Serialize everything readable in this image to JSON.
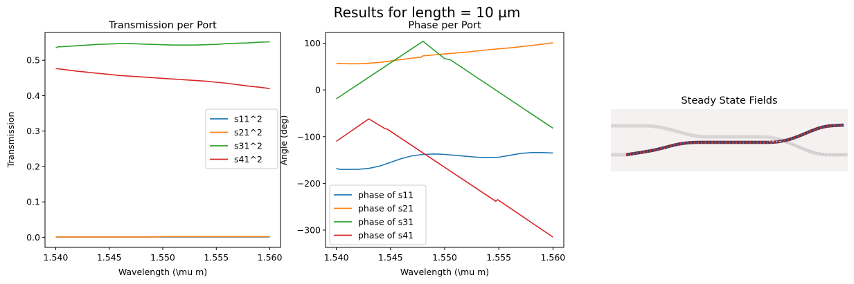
{
  "suptitle": "Results for length = 10 µm",
  "chart_data": [
    {
      "type": "line",
      "title": "Transmission per Port",
      "xlabel": "Wavelength (\\mu m)",
      "ylabel": "Transmission",
      "xlim": [
        1.539,
        1.561
      ],
      "ylim": [
        -0.0285,
        0.5785
      ],
      "xticks": [
        1.54,
        1.545,
        1.55,
        1.555,
        1.56
      ],
      "xtick_labels": [
        "1.540",
        "1.545",
        "1.550",
        "1.555",
        "1.560"
      ],
      "yticks": [
        0.0,
        0.1,
        0.2,
        0.3,
        0.4,
        0.5
      ],
      "ytick_labels": [
        "0.0",
        "0.1",
        "0.2",
        "0.3",
        "0.4",
        "0.5"
      ],
      "legend_position": "center-right",
      "x": [
        1.54,
        1.5402,
        1.541,
        1.542,
        1.543,
        1.544,
        1.545,
        1.546,
        1.547,
        1.548,
        1.549,
        1.55,
        1.551,
        1.552,
        1.553,
        1.554,
        1.555,
        1.556,
        1.557,
        1.558,
        1.559,
        1.56
      ],
      "series": [
        {
          "name": "s11^2",
          "color": "#1f77b4",
          "values": [
            0.001,
            0.001,
            0.001,
            0.001,
            0.001,
            0.001,
            0.001,
            0.001,
            0.001,
            0.001,
            0.001,
            0.001,
            0.001,
            0.001,
            0.001,
            0.001,
            0.001,
            0.001,
            0.001,
            0.001,
            0.001,
            0.001
          ]
        },
        {
          "name": "s21^2",
          "color": "#ff7f0e",
          "values": [
            0.001,
            0.001,
            0.001,
            0.001,
            0.001,
            0.001,
            0.001,
            0.001,
            0.001,
            0.001,
            0.001,
            0.002,
            0.002,
            0.002,
            0.002,
            0.002,
            0.002,
            0.002,
            0.002,
            0.002,
            0.002,
            0.002
          ]
        },
        {
          "name": "s31^2",
          "color": "#2ca02c",
          "values": [
            0.535,
            0.538,
            0.539,
            0.541,
            0.543,
            0.545,
            0.546,
            0.547,
            0.547,
            0.546,
            0.545,
            0.544,
            0.543,
            0.543,
            0.543,
            0.544,
            0.545,
            0.547,
            0.548,
            0.549,
            0.551,
            0.552
          ]
        },
        {
          "name": "s41^2",
          "color": "#d62728",
          "values": [
            0.476,
            0.476,
            0.473,
            0.469,
            0.466,
            0.463,
            0.46,
            0.457,
            0.455,
            0.453,
            0.451,
            0.449,
            0.447,
            0.445,
            0.443,
            0.441,
            0.438,
            0.435,
            0.431,
            0.427,
            0.424,
            0.42
          ]
        }
      ]
    },
    {
      "type": "line",
      "title": "Phase per Port",
      "xlabel": "Wavelength (\\mu m)",
      "ylabel": "Angle (deg)",
      "xlim": [
        1.539,
        1.561
      ],
      "ylim": [
        -337,
        123
      ],
      "xticks": [
        1.54,
        1.545,
        1.55,
        1.555,
        1.56
      ],
      "xtick_labels": [
        "1.540",
        "1.545",
        "1.550",
        "1.555",
        "1.560"
      ],
      "yticks": [
        100,
        0,
        -100,
        -200,
        -300
      ],
      "ytick_labels": [
        "100",
        "0",
        "−100",
        "−200",
        "−300"
      ],
      "legend_position": "lower-left",
      "series": [
        {
          "name": "phase of s11",
          "color": "#1f77b4",
          "x": [
            1.54,
            1.5403,
            1.541,
            1.542,
            1.543,
            1.544,
            1.545,
            1.546,
            1.547,
            1.548,
            1.549,
            1.55,
            1.551,
            1.552,
            1.553,
            1.554,
            1.555,
            1.556,
            1.557,
            1.558,
            1.559,
            1.56
          ],
          "values": [
            -168,
            -170,
            -170,
            -170,
            -168,
            -163,
            -155,
            -147,
            -141,
            -138,
            -137,
            -138,
            -140,
            -142,
            -144,
            -145,
            -144,
            -140,
            -136,
            -134,
            -134,
            -135
          ]
        },
        {
          "name": "phase of s21",
          "color": "#ff7f0e",
          "x": [
            1.54,
            1.541,
            1.542,
            1.543,
            1.544,
            1.545,
            1.546,
            1.547,
            1.5478,
            1.548,
            1.549,
            1.55,
            1.552,
            1.554,
            1.556,
            1.558,
            1.56
          ],
          "values": [
            57,
            56,
            56,
            57,
            59,
            62,
            65,
            68,
            70,
            73,
            75,
            77,
            81,
            86,
            90,
            95,
            101
          ]
        },
        {
          "name": "phase of s31",
          "color": "#2ca02c",
          "x": [
            1.54,
            1.548,
            1.55,
            1.5505,
            1.56
          ],
          "values": [
            -19,
            104,
            67,
            65,
            -82
          ]
        },
        {
          "name": "phase of s41",
          "color": "#d62728",
          "x": [
            1.54,
            1.543,
            1.5445,
            1.5447,
            1.5547,
            1.5549,
            1.56
          ],
          "values": [
            -110,
            -62,
            -83,
            -84,
            -238,
            -235,
            -315
          ]
        }
      ]
    }
  ],
  "image_panel": {
    "title": "Steady State Fields"
  }
}
